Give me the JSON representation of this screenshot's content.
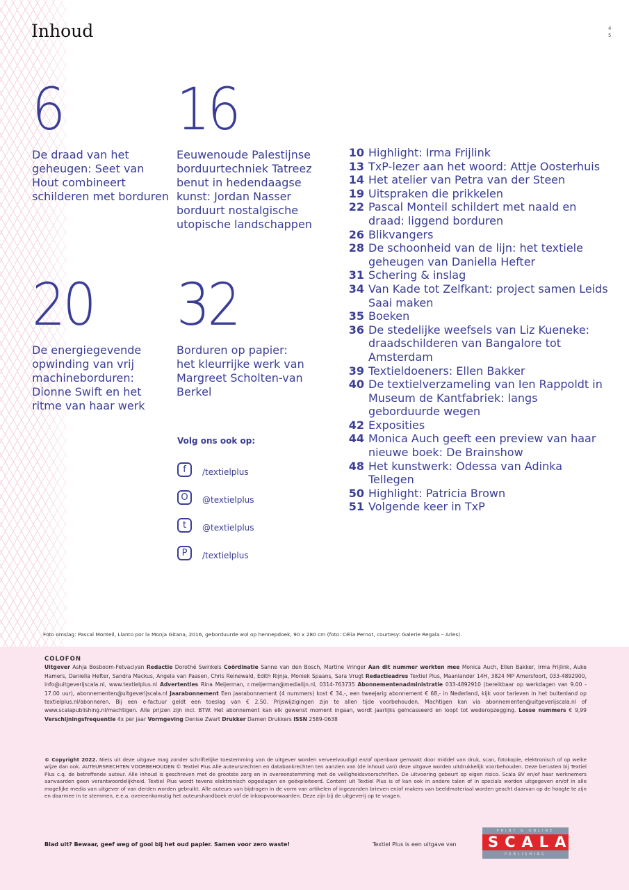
{
  "header": {
    "title": "Inhoud",
    "folio": [
      "4",
      "5"
    ]
  },
  "features": [
    {
      "num": "6",
      "text": "De draad van het geheugen: Seet van Hout combineert schilderen met borduren"
    },
    {
      "num": "16",
      "text": "Eeuwenoude Palestijnse borduurtechniek Tatreez benut in hedendaagse kunst: Jordan Nasser borduurt nostalgische utopische landschappen"
    },
    {
      "num": "20",
      "text": "De energiegevende opwinding van vrij machineborduren: Dionne Swift en het ritme van haar werk"
    },
    {
      "num": "32",
      "text": "Borduren op papier: het kleurrijke werk van Margreet Scholten-van Berkel"
    }
  ],
  "toc": [
    {
      "n": "10",
      "t": "Highlight: Irma Frijlink"
    },
    {
      "n": "13",
      "t": "TxP-lezer aan het woord: Attje Oosterhuis"
    },
    {
      "n": "14",
      "t": "Het atelier van Petra van der Steen"
    },
    {
      "n": "19",
      "t": "Uitspraken die prikkelen"
    },
    {
      "n": "22",
      "t": "Pascal Monteil schildert met naald en draad: liggend borduren"
    },
    {
      "n": "26",
      "t": "Blikvangers"
    },
    {
      "n": "28",
      "t": "De schoonheid van de lijn: het textiele geheugen van Daniella Hefter"
    },
    {
      "n": "31",
      "t": "Schering & inslag"
    },
    {
      "n": "34",
      "t": "Van Kade tot Zelfkant: project samen Leids Saai maken"
    },
    {
      "n": "35",
      "t": "Boeken"
    },
    {
      "n": "36",
      "t": "De stedelijke weefsels van Liz Kueneke: draadschilderen van Bangalore tot Amsterdam"
    },
    {
      "n": "39",
      "t": "Textieldoeners: Ellen Bakker"
    },
    {
      "n": "40",
      "t": "De textielverzameling van Ien Rappoldt in Museum de Kantfabriek: langs geborduurde wegen"
    },
    {
      "n": "42",
      "t": "Exposities"
    },
    {
      "n": "44",
      "t": "Monica Auch geeft een preview van haar nieuwe boek: De Brainshow"
    },
    {
      "n": "48",
      "t": "Het kunstwerk: Odessa van Adinka Tellegen"
    },
    {
      "n": "50",
      "t": "Highlight: Patricia Brown"
    },
    {
      "n": "51",
      "t": "Volgende keer in TxP"
    }
  ],
  "social": {
    "heading": "Volg ons ook op:",
    "items": [
      {
        "icon": "facebook-icon",
        "glyph": "f",
        "handle": "/textielplus"
      },
      {
        "icon": "instagram-icon",
        "glyph": "O",
        "handle": "@textielplus"
      },
      {
        "icon": "twitter-icon",
        "glyph": "t",
        "handle": "@textielplus"
      },
      {
        "icon": "pinterest-icon",
        "glyph": "P",
        "handle": "/textielplus"
      }
    ]
  },
  "credit": "Foto omslag: Pascal Monteil, Llanto por la Monja Gitana, 2016, geborduurde wol op hennepdoek, 90 x 280 cm (foto: Célia Pernot, courtesy: Galerie Regala – Arles).",
  "colofon": {
    "heading": "COLOFON",
    "parts": [
      {
        "b": "Uitgever",
        "t": " Ashja Bosboom-Fetvaciyan "
      },
      {
        "b": "Redactie",
        "t": " Dorothé Swinkels "
      },
      {
        "b": "Coördinatie",
        "t": " Sanne van den Bosch, Martine Vringer "
      },
      {
        "b": "Aan dit nummer werkten mee",
        "t": " Monica Auch, Ellen Bakker, Irma Frijlink, Auke Hamers, Daniella Hefter, Sandra Mackus, Angela van Paasen, Chris Reinewald, Edith Rijnja, Moniek Spaans, Sara Vrugt "
      },
      {
        "b": "Redactieadres",
        "t": " Textiel Plus, Maanlander 14H, 3824 MP Amersfoort, 033-4892900, info@uitgeverijscala.nl, www.textielplus.nl "
      },
      {
        "b": "Advertenties",
        "t": " Rina Meijerman, r.meijerman@medialijn.nl, 0314-763735 "
      },
      {
        "b": "Abonnementenadministratie",
        "t": " 033-4892910 (bereikbaar op werkdagen van 9.00 - 17.00 uur), abonnementen@uitgeverijscala.nl "
      },
      {
        "b": "Jaarabonnement",
        "t": " Een jaarabonnement (4 nummers) kost € 34,-, een tweejarig abonnement € 68,- in Nederland, kijk voor tarieven in het buitenland op textielplus.nl/abonneren. Bij een e-factuur geldt een toeslag van € 2,50. Prijswijzigingen zijn te allen tijde voorbehouden. Machtigen kan via abonnementen@uitgeverijscala.nl of www.scalapublishing.nl/machtigen. Alle prijzen zijn incl. BTW. Het abonnement kan elk gewenst moment ingaan, wordt jaarlijks geïncasseerd en loopt tot wederopzegging. "
      },
      {
        "b": "Losse nummers",
        "t": " € 9,99 "
      },
      {
        "b": "Verschijningsfrequentie",
        "t": " 4x per jaar "
      },
      {
        "b": "Vormgeving",
        "t": " Denise Zwart "
      },
      {
        "b": "Drukker",
        "t": " Damen Drukkers "
      },
      {
        "b": "ISSN",
        "t": " 2589-0638"
      }
    ]
  },
  "copyright": {
    "b": "© Copyright 2022.",
    "t": " Niets uit deze uitgave mag zonder schriftelijke toestemming van de uitgever worden verveelvoudigd en/of openbaar gemaakt door middel van druk, scan, fotokopie, elektronisch of op welke wijze dan ook. AUTEURSRECHTEN VOORBEHOUDEN © Textiel Plus Alle auteursrechten en databankrechten ten aanzien van (de inhoud van) deze uitgave worden uitdrukkelijk voorbehouden. Deze berusten bij Textiel Plus c.q. de betreffende auteur. Alle inhoud is geschreven met de grootste zorg en in overeenstemming met de veiligheidsvoorschriften. De uitvoering gebeurt op eigen risico. Scala BV en/of haar werknemers aanvaarden geen verantwoordelijkheid. Textiel Plus wordt tevens elektronisch opgeslagen en geëxploiteerd. Content uit Textiel Plus is of kan ook in andere talen of in specials worden uitgegeven en/of in alle mogelijke media van uitgever of van derden worden gebruikt. Alle auteurs van bijdragen in de vorm van artikelen of ingezonden brieven en/of makers van beeldmateriaal worden geacht daarvan op de hoogte te zijn en daarmee in te stemmen, e.e.a. overeenkomstig het auteurshandboek en/of de inkoopvoorwaarden. Deze zijn bij de uitgeverij op te vragen."
  },
  "footer": {
    "zero_waste": "Blad uit? Bewaar, geef weg of gooi bij het oud papier. Samen voor zero waste!",
    "publisher_note": "Textiel Plus is een uitgave van",
    "logo": {
      "top": "PRINT & ONLINE",
      "main": "SCALA",
      "bottom": "PUBLISHING"
    }
  },
  "colors": {
    "text": "#3a3d96",
    "pink_bg": "#fbe5ee",
    "logo_red": "#e0262d",
    "logo_grey": "#8897a8"
  }
}
